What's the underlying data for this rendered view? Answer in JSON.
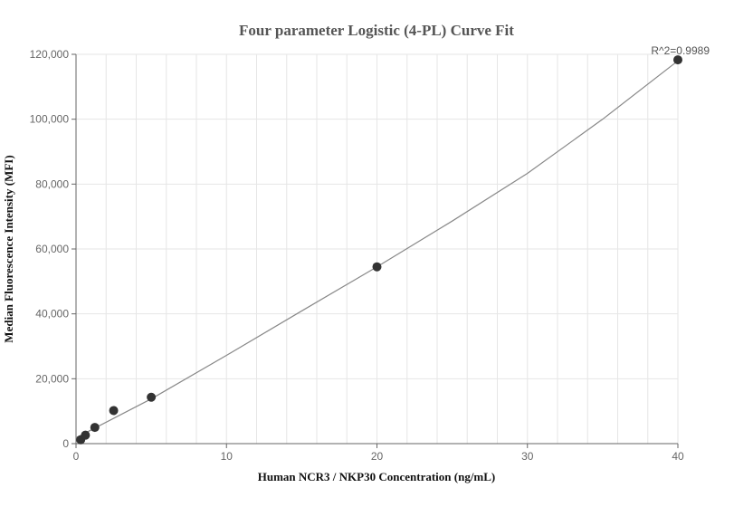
{
  "chart_data": {
    "type": "scatter",
    "title": "Four parameter Logistic (4-PL) Curve Fit",
    "xlabel": "Human NCR3 / NKP30 Concentration (ng/mL)",
    "ylabel": "Median Fluorescence Intensity (MFI)",
    "xlim": [
      0,
      40
    ],
    "ylim": [
      0,
      120000
    ],
    "x_ticks": [
      0,
      10,
      20,
      30,
      40
    ],
    "y_ticks": [
      0,
      20000,
      40000,
      60000,
      80000,
      100000,
      120000
    ],
    "x_tick_labels": [
      "0",
      "10",
      "20",
      "30",
      "40"
    ],
    "y_tick_labels": [
      "0",
      "20,000",
      "40,000",
      "60,000",
      "80,000",
      "100,000",
      "120,000"
    ],
    "grid": true,
    "annotation": "R^2=0.9989",
    "series": [
      {
        "points": [
          {
            "x": 0.3125,
            "y": 1200
          },
          {
            "x": 0.625,
            "y": 2600
          },
          {
            "x": 1.25,
            "y": 5000
          },
          {
            "x": 2.5,
            "y": 10200
          },
          {
            "x": 5,
            "y": 14300
          },
          {
            "x": 20,
            "y": 54500
          },
          {
            "x": 40,
            "y": 118300
          }
        ]
      }
    ],
    "fit_curve": {
      "x": [
        0,
        5,
        10,
        15,
        20,
        25,
        30,
        35,
        40
      ],
      "y": [
        1800,
        13800,
        27200,
        40900,
        54500,
        68600,
        83300,
        100000,
        118000
      ]
    },
    "colors": {
      "point": "#333333",
      "curve": "#888888",
      "grid": "#e6e6e6",
      "axis": "#666666"
    }
  }
}
